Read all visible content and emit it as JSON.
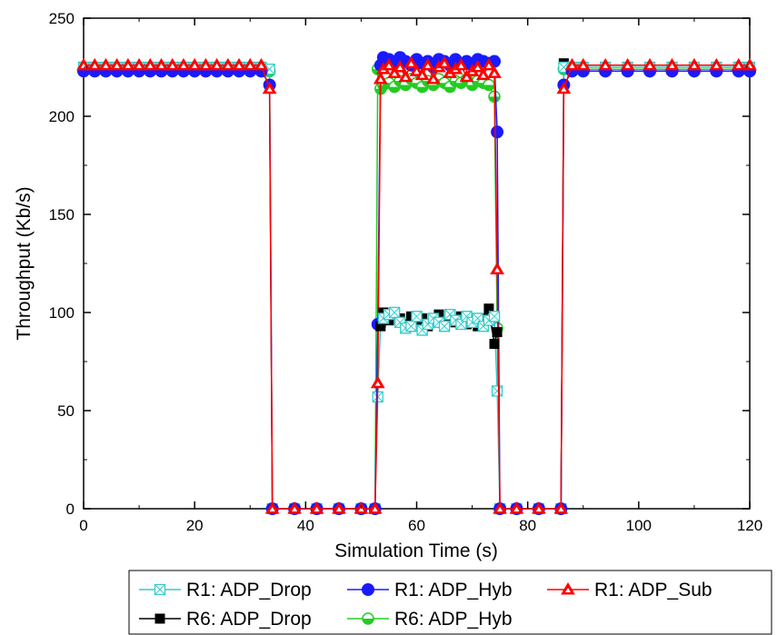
{
  "chart_data": {
    "type": "scatter",
    "xlabel": "Simulation Time (s)",
    "ylabel": "Throughput (Kb/s)",
    "xlim": [
      0,
      120
    ],
    "ylim": [
      0,
      250
    ],
    "x_ticks": [
      0,
      20,
      40,
      60,
      80,
      100,
      120
    ],
    "y_ticks": [
      0,
      50,
      100,
      150,
      200,
      250
    ],
    "grid": false,
    "legend_position": "bottom",
    "series": [
      {
        "name": "R1: ADP_Drop",
        "color": "#33cccc",
        "marker": "square-cross",
        "x": [
          0,
          2,
          4,
          6,
          8,
          10,
          12,
          14,
          16,
          18,
          20,
          22,
          24,
          26,
          28,
          30,
          32,
          33.5,
          34,
          38,
          42,
          46,
          50,
          52.5,
          53,
          53.5,
          54,
          55,
          56,
          57,
          58,
          59,
          60,
          61,
          62,
          63,
          64,
          65,
          66,
          67,
          68,
          69,
          70,
          71,
          72,
          73,
          74,
          74.5,
          75,
          78,
          82,
          86,
          86.5,
          88,
          90,
          94,
          98,
          102,
          106,
          110,
          114,
          118,
          120
        ],
        "y": [
          225,
          225,
          225,
          225,
          225,
          225,
          225,
          225,
          225,
          225,
          225,
          225,
          225,
          225,
          225,
          225,
          225,
          224,
          0,
          0,
          0,
          0,
          0,
          0,
          57,
          95,
          97,
          99,
          100,
          95,
          92,
          93,
          98,
          91,
          94,
          97,
          95,
          93,
          99,
          96,
          94,
          98,
          95,
          97,
          93,
          96,
          98,
          60,
          0,
          0,
          0,
          0,
          225,
          225,
          225,
          225,
          225,
          225,
          225,
          225,
          225,
          225,
          225
        ]
      },
      {
        "name": "R1: ADP_Hyb",
        "color": "#1a1aff",
        "marker": "circle",
        "x": [
          0,
          2,
          4,
          6,
          8,
          10,
          12,
          14,
          16,
          18,
          20,
          22,
          24,
          26,
          28,
          30,
          32,
          33.5,
          34,
          38,
          42,
          46,
          50,
          52.5,
          53,
          53.5,
          54,
          55,
          56,
          57,
          58,
          59,
          60,
          61,
          62,
          63,
          64,
          65,
          66,
          67,
          68,
          69,
          70,
          71,
          72,
          73,
          74,
          74.5,
          75,
          78,
          82,
          86,
          86.5,
          88,
          90,
          94,
          98,
          102,
          106,
          110,
          114,
          118,
          120
        ],
        "y": [
          223,
          223,
          223,
          223,
          223,
          223,
          223,
          223,
          223,
          223,
          223,
          223,
          223,
          223,
          223,
          223,
          223,
          216,
          0,
          0,
          0,
          0,
          0,
          0,
          94,
          226,
          230,
          229,
          227,
          230,
          228,
          226,
          229,
          227,
          228,
          225,
          229,
          228,
          226,
          229,
          227,
          228,
          226,
          229,
          228,
          227,
          228,
          192,
          0,
          0,
          0,
          0,
          216,
          223,
          223,
          223,
          223,
          223,
          223,
          223,
          223,
          223,
          223
        ]
      },
      {
        "name": "R1: ADP_Sub",
        "color": "#ff0000",
        "marker": "triangle",
        "x": [
          0,
          2,
          4,
          6,
          8,
          10,
          12,
          14,
          16,
          18,
          20,
          22,
          24,
          26,
          28,
          30,
          32,
          33.5,
          34,
          38,
          42,
          46,
          50,
          52.5,
          53,
          53.5,
          54,
          55,
          56,
          57,
          58,
          59,
          60,
          61,
          62,
          63,
          64,
          65,
          66,
          67,
          68,
          69,
          70,
          71,
          72,
          73,
          74,
          74.5,
          75,
          78,
          82,
          86,
          86.5,
          88,
          90,
          94,
          98,
          102,
          106,
          110,
          114,
          118,
          120
        ],
        "y": [
          226,
          226,
          226,
          226,
          226,
          226,
          226,
          226,
          226,
          226,
          226,
          226,
          226,
          226,
          226,
          226,
          226,
          214,
          0,
          0,
          0,
          0,
          0,
          0,
          64,
          219,
          224,
          226,
          222,
          225,
          220,
          227,
          223,
          221,
          226,
          219,
          225,
          227,
          222,
          224,
          226,
          220,
          223,
          225,
          221,
          226,
          222,
          122,
          0,
          0,
          0,
          0,
          214,
          226,
          226,
          226,
          226,
          226,
          226,
          226,
          226,
          226,
          226
        ]
      },
      {
        "name": "R6: ADP_Drop",
        "color": "#000000",
        "marker": "square",
        "x": [
          86,
          86.5,
          87,
          88
        ],
        "y": [
          0,
          227,
          225,
          225
        ]
      },
      {
        "name": "R6: ADP_Hyb",
        "color": "#22cc22",
        "marker": "circle-half",
        "x": [
          0,
          2,
          4,
          6,
          8,
          10,
          12,
          14,
          16,
          18,
          20,
          22,
          24,
          26,
          28,
          30,
          32,
          33.5,
          34,
          38,
          42,
          46,
          50,
          52.5,
          53,
          53.5,
          54,
          55,
          56,
          57,
          58,
          59,
          60,
          61,
          62,
          63,
          64,
          65,
          66,
          67,
          68,
          69,
          70,
          71,
          72,
          73,
          74,
          74.5,
          75,
          78,
          82,
          86,
          86.5,
          88,
          90,
          94,
          98,
          102,
          106,
          110,
          114,
          118,
          120
        ],
        "y": [
          224,
          224,
          224,
          224,
          224,
          224,
          224,
          224,
          224,
          224,
          224,
          224,
          224,
          224,
          224,
          224,
          224,
          223,
          0,
          0,
          0,
          0,
          0,
          0,
          224,
          214,
          216,
          217,
          215,
          218,
          216,
          219,
          217,
          215,
          218,
          216,
          219,
          217,
          215,
          218,
          217,
          219,
          216,
          218,
          217,
          216,
          210,
          92,
          0,
          0,
          0,
          0,
          224,
          224,
          224,
          224,
          224,
          224,
          224,
          224,
          224,
          224,
          224
        ]
      }
    ],
    "r6_drop_band": {
      "x": [
        53.5,
        54,
        55,
        56,
        57,
        58,
        59,
        60,
        61,
        62,
        63,
        64,
        65,
        66,
        67,
        68,
        69,
        70,
        71,
        72,
        73,
        74,
        74.5
      ],
      "y": [
        93,
        100,
        96,
        99,
        97,
        94,
        98,
        95,
        97,
        93,
        96,
        99,
        94,
        97,
        95,
        98,
        94,
        96,
        93,
        97,
        102,
        84,
        90
      ]
    }
  }
}
